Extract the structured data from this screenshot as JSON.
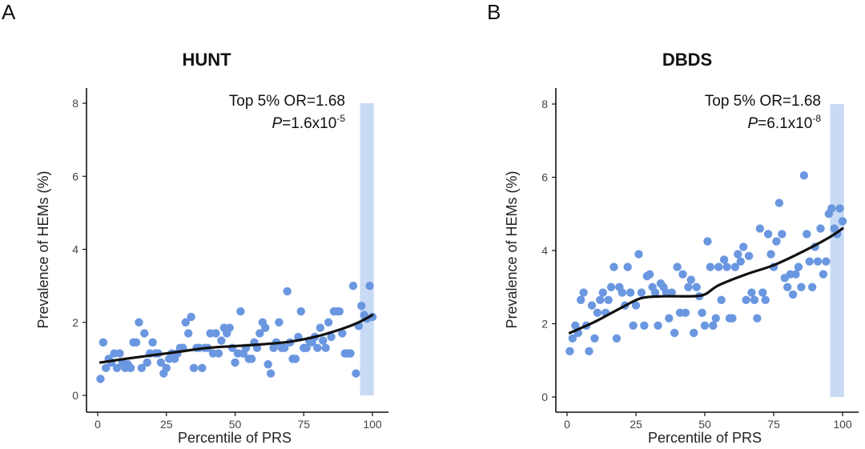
{
  "chart_data": [
    {
      "type": "scatter",
      "panel_label": "A",
      "title": "HUNT",
      "xlabel": "Percentile of PRS",
      "ylabel": "Prevalence of HEMs (%)",
      "xlim": [
        0,
        100
      ],
      "ylim": [
        0,
        8
      ],
      "xticks": [
        "0",
        "25",
        "50",
        "75",
        "100"
      ],
      "yticks": [
        "0",
        "2",
        "4",
        "6",
        "8"
      ],
      "grid": false,
      "annotation": {
        "line1": "Top 5% OR=1.68",
        "p_prefix": "P",
        "p_text": "=1.6x10",
        "p_exp": "-5"
      },
      "highlight_band": {
        "x_from": 95.5,
        "x_to": 100.5,
        "y_from": 0,
        "y_to": 8
      },
      "point_color": "#6a97e0",
      "band_color": "#c9daf5",
      "points": {
        "x": [
          1,
          2,
          3,
          4,
          5,
          6,
          7,
          8,
          9,
          10,
          11,
          12,
          13,
          14,
          15,
          16,
          17,
          18,
          19,
          20,
          21,
          22,
          23,
          24,
          25,
          26,
          27,
          28,
          29,
          30,
          31,
          32,
          33,
          34,
          35,
          36,
          37,
          38,
          39,
          40,
          41,
          42,
          43,
          44,
          45,
          46,
          47,
          48,
          49,
          50,
          51,
          52,
          53,
          54,
          55,
          56,
          57,
          58,
          59,
          60,
          61,
          62,
          63,
          64,
          65,
          66,
          67,
          68,
          69,
          70,
          71,
          72,
          73,
          74,
          75,
          76,
          77,
          78,
          79,
          80,
          81,
          82,
          83,
          84,
          85,
          86,
          87,
          88,
          89,
          90,
          91,
          92,
          93,
          94,
          95,
          96,
          97,
          98,
          99,
          100
        ],
        "y": [
          0.45,
          1.45,
          0.75,
          1.0,
          0.9,
          1.15,
          0.75,
          1.15,
          0.9,
          0.75,
          0.85,
          0.75,
          1.45,
          1.45,
          2.0,
          0.75,
          1.7,
          0.9,
          1.15,
          1.45,
          1.15,
          1.15,
          0.9,
          0.6,
          0.75,
          1.0,
          1.15,
          1.0,
          1.15,
          1.3,
          1.3,
          2.0,
          1.7,
          2.15,
          0.75,
          1.3,
          1.3,
          0.75,
          1.3,
          1.3,
          1.7,
          1.15,
          1.7,
          1.15,
          1.5,
          1.85,
          1.7,
          1.85,
          1.3,
          0.9,
          1.15,
          2.3,
          1.15,
          1.3,
          1.0,
          1.0,
          1.45,
          1.3,
          1.7,
          2.0,
          1.85,
          0.85,
          0.6,
          1.3,
          1.45,
          2.0,
          1.3,
          1.3,
          2.85,
          1.45,
          1.0,
          1.0,
          1.6,
          2.3,
          1.3,
          1.3,
          1.5,
          1.45,
          1.6,
          1.3,
          1.85,
          1.5,
          1.3,
          2.0,
          1.6,
          2.3,
          2.3,
          2.3,
          1.7,
          1.15,
          1.15,
          1.15,
          3.0,
          0.6,
          1.9,
          2.45,
          2.2,
          2.1,
          3.0,
          2.15
        ]
      },
      "trend": {
        "x": [
          1,
          10,
          20,
          30,
          40,
          50,
          60,
          70,
          80,
          90,
          95,
          100
        ],
        "y": [
          0.9,
          1.0,
          1.1,
          1.2,
          1.3,
          1.35,
          1.4,
          1.47,
          1.62,
          1.85,
          2.0,
          2.2
        ]
      }
    },
    {
      "type": "scatter",
      "panel_label": "B",
      "title": "DBDS",
      "xlabel": "Percentile of PRS",
      "ylabel": "Prevalence of HEMs (%)",
      "xlim": [
        0,
        100
      ],
      "ylim": [
        0,
        8
      ],
      "xticks": [
        "0",
        "25",
        "50",
        "75",
        "100"
      ],
      "yticks": [
        "0",
        "2",
        "4",
        "6",
        "8"
      ],
      "grid": false,
      "annotation": {
        "line1": "Top 5% OR=1.68",
        "p_prefix": "P",
        "p_text": "=6.1x10",
        "p_exp": "-8"
      },
      "highlight_band": {
        "x_from": 95.5,
        "x_to": 100.5,
        "y_from": 0,
        "y_to": 8
      },
      "point_color": "#6a97e0",
      "band_color": "#c9daf5",
      "points": {
        "x": [
          1,
          2,
          3,
          4,
          5,
          6,
          7,
          8,
          9,
          10,
          11,
          12,
          13,
          14,
          15,
          16,
          17,
          18,
          19,
          20,
          21,
          22,
          23,
          24,
          25,
          26,
          27,
          28,
          29,
          30,
          31,
          32,
          33,
          34,
          35,
          36,
          37,
          38,
          39,
          40,
          41,
          42,
          43,
          44,
          45,
          46,
          47,
          48,
          49,
          50,
          51,
          52,
          53,
          54,
          55,
          56,
          57,
          58,
          59,
          60,
          61,
          62,
          63,
          64,
          65,
          66,
          67,
          68,
          69,
          70,
          71,
          72,
          73,
          74,
          75,
          76,
          77,
          78,
          79,
          80,
          81,
          82,
          83,
          84,
          85,
          86,
          87,
          88,
          89,
          90,
          91,
          92,
          93,
          94,
          95,
          96,
          97,
          98,
          99,
          100
        ],
        "y": [
          1.25,
          1.6,
          1.95,
          1.75,
          2.65,
          2.85,
          1.95,
          1.25,
          2.5,
          1.6,
          2.3,
          2.65,
          2.85,
          2.3,
          2.65,
          3.0,
          3.55,
          1.6,
          3.0,
          2.85,
          2.5,
          3.55,
          2.85,
          1.95,
          2.5,
          3.9,
          2.85,
          1.95,
          3.3,
          3.35,
          3.0,
          2.85,
          1.95,
          3.1,
          3.0,
          2.85,
          2.15,
          2.85,
          1.75,
          3.55,
          2.3,
          3.35,
          2.3,
          3.0,
          3.2,
          1.75,
          3.0,
          2.75,
          2.3,
          1.95,
          4.25,
          3.55,
          1.95,
          2.15,
          3.55,
          2.65,
          3.75,
          3.55,
          2.15,
          2.15,
          3.55,
          3.9,
          3.7,
          4.1,
          2.65,
          3.85,
          2.85,
          2.65,
          2.15,
          4.6,
          2.85,
          2.65,
          4.45,
          3.9,
          3.55,
          4.25,
          5.3,
          4.45,
          3.25,
          3.0,
          3.35,
          2.8,
          3.35,
          3.55,
          3.0,
          6.05,
          4.45,
          3.7,
          3.0,
          4.1,
          3.7,
          4.6,
          3.35,
          3.7,
          5.0,
          5.15,
          4.6,
          4.45,
          5.15,
          4.8
        ]
      },
      "trend": {
        "x": [
          1,
          10,
          20,
          27,
          35,
          45,
          50,
          55,
          65,
          75,
          85,
          95,
          100
        ],
        "y": [
          1.75,
          2.05,
          2.45,
          2.7,
          2.75,
          2.75,
          2.8,
          3.05,
          3.35,
          3.6,
          3.95,
          4.35,
          4.6
        ]
      }
    }
  ]
}
